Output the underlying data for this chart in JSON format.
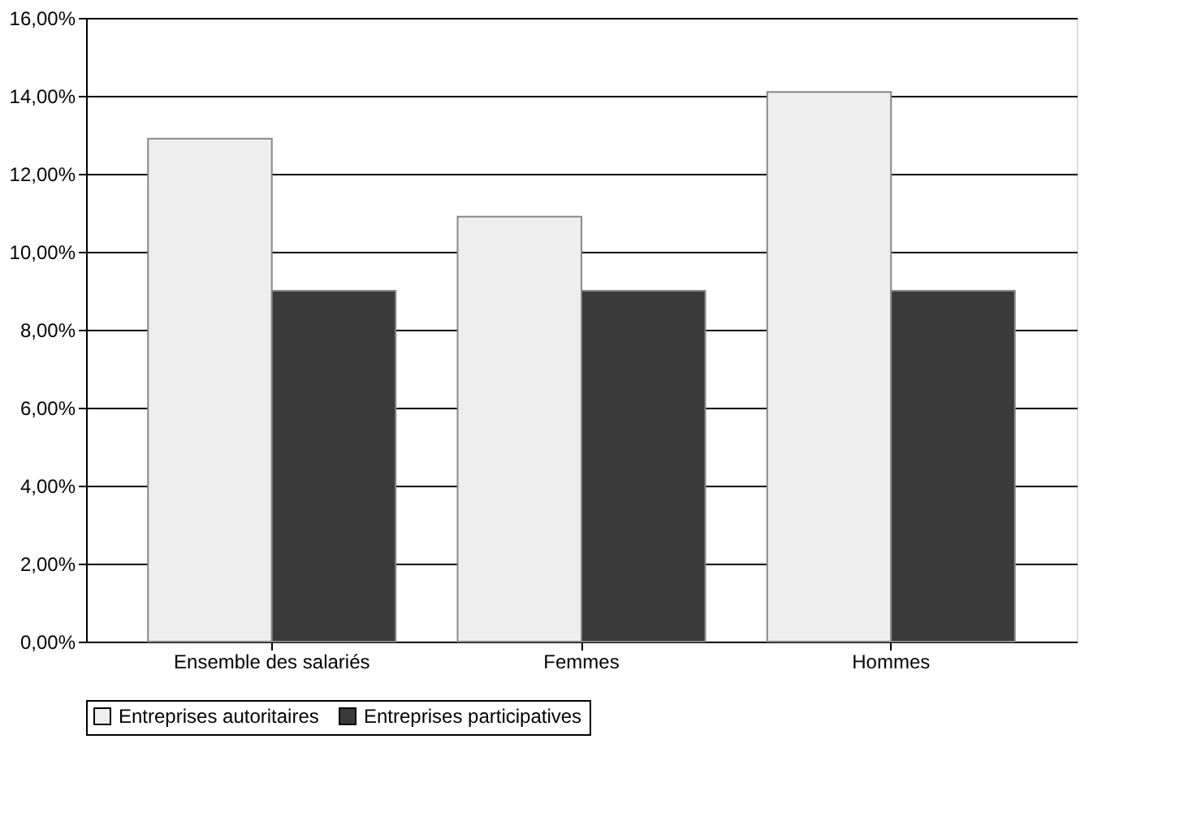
{
  "chart_data": {
    "type": "bar",
    "categories": [
      "Ensemble des salariés",
      "Femmes",
      "Hommes"
    ],
    "series": [
      {
        "name": "Entreprises autoritaires",
        "color": "#eeeeee",
        "values": [
          12.9,
          10.9,
          14.1
        ]
      },
      {
        "name": "Entreprises participatives",
        "color": "#3a3a3a",
        "values": [
          9.0,
          9.0,
          9.0
        ]
      }
    ],
    "ylim": [
      0,
      16
    ],
    "yticks": [
      {
        "value": 0,
        "label": "0,00%"
      },
      {
        "value": 2,
        "label": "2,00%"
      },
      {
        "value": 4,
        "label": "4,00%"
      },
      {
        "value": 6,
        "label": "6,00%"
      },
      {
        "value": 8,
        "label": "8,00%"
      },
      {
        "value": 10,
        "label": "10,00%"
      },
      {
        "value": 12,
        "label": "12,00%"
      },
      {
        "value": 14,
        "label": "14,00%"
      },
      {
        "value": 16,
        "label": "16,00%"
      }
    ],
    "grid": "y",
    "legend": "bottom"
  }
}
